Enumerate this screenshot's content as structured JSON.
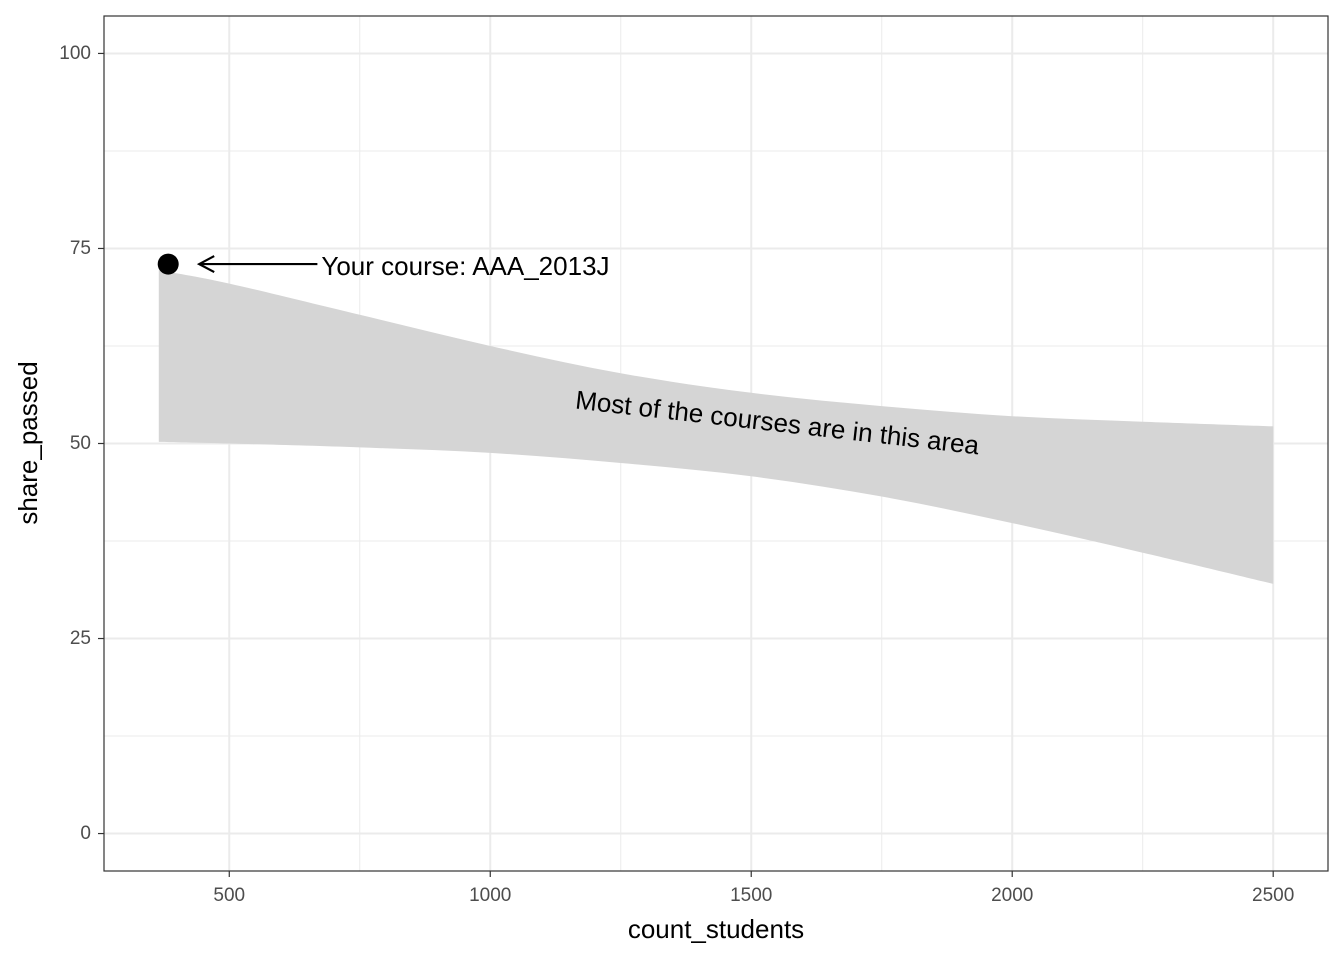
{
  "chart_data": {
    "type": "area",
    "title": "",
    "xlabel": "count_students",
    "ylabel": "share_passed",
    "xlim": [
      260,
      2605
    ],
    "ylim": [
      -4.8,
      104.8
    ],
    "x_ticks": [
      500,
      1000,
      1500,
      2000,
      2500
    ],
    "y_ticks": [
      0,
      25,
      50,
      75,
      100
    ],
    "x_minor_ticks": [
      750,
      1250,
      1750,
      2250
    ],
    "y_minor_ticks": [
      12.5,
      37.5,
      62.5,
      87.5
    ],
    "grid": true,
    "colors": {
      "band": "#d5d5d5",
      "point": "#000000",
      "grid": "#ebebeb",
      "border": "#333333"
    },
    "band": {
      "x": [
        365,
        500,
        750,
        1000,
        1250,
        1500,
        1750,
        2000,
        2250,
        2500
      ],
      "upper": [
        72.2,
        70.5,
        66.5,
        62.5,
        59.0,
        56.5,
        54.8,
        53.5,
        52.8,
        52.2
      ],
      "lower": [
        50.2,
        50.0,
        49.5,
        48.8,
        47.5,
        45.8,
        43.2,
        39.8,
        36.0,
        32.0
      ]
    },
    "points": [
      {
        "x": 383,
        "y": 73,
        "label": "Your course: AAA_2013J"
      }
    ],
    "annotations": [
      {
        "text": "Your course: AAA_2013J",
        "x": 665,
        "y": 73
      },
      {
        "text": "Most of the courses are in this area",
        "x": 1550,
        "y": 52.7,
        "angle": 6.5
      }
    ]
  }
}
